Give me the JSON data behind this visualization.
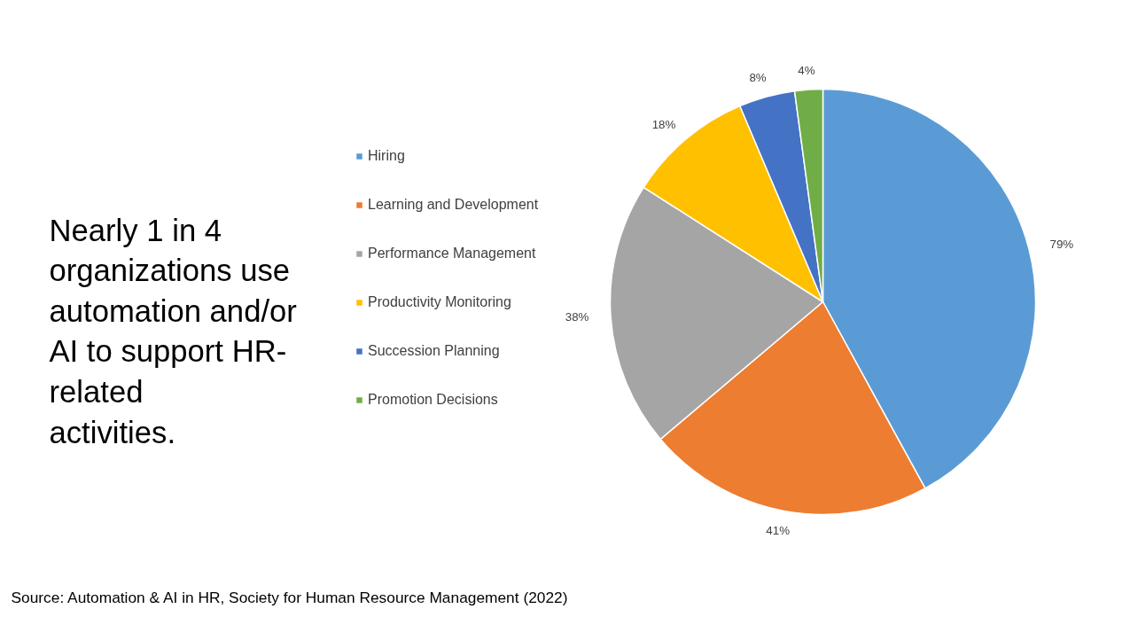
{
  "chart_data": {
    "type": "pie",
    "title": "Nearly 1 in 4 organizations use automation and/or AI to support HR-related activities.",
    "categories": [
      "Hiring",
      "Learning and Development",
      "Performance Management",
      "Productivity Monitoring",
      "Succession Planning",
      "Promotion Decisions"
    ],
    "values": [
      79,
      41,
      38,
      18,
      8,
      4
    ],
    "colors": [
      "#5b9bd5",
      "#ed7d31",
      "#a5a5a5",
      "#ffc000",
      "#4472c4",
      "#70ad47"
    ],
    "value_labels": [
      "79%",
      "41%",
      "38%",
      "18%",
      "8%",
      "4%"
    ],
    "legend": "left",
    "annotations": [
      "Source: Automation & AI in HR, Society for Human Resource Management (2022)"
    ]
  }
}
